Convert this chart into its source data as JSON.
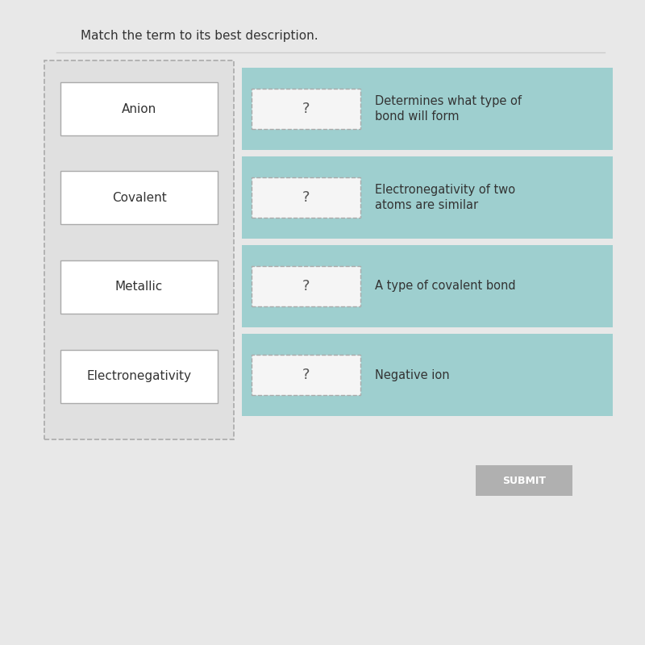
{
  "title": "Match the term to its best description.",
  "background_color": "#e8e8e8",
  "terms": [
    "Anion",
    "Covalent",
    "Metallic",
    "Electronegativity"
  ],
  "descriptions": [
    "Determines what type of\nbond will form",
    "Electronegativity of two\natoms are similar",
    "A type of covalent bond",
    "Negative ion"
  ],
  "term_box_color": "#ffffff",
  "term_box_edge_color": "#aaaaaa",
  "left_panel_dash_color": "#aaaaaa",
  "right_panel_color": "#9ecfcf",
  "question_box_color": "#f5f5f5",
  "question_box_edge_color": "#aaaaaa",
  "question_mark": "?",
  "submit_button_color": "#b0b0b0",
  "submit_text": "SUBMIT",
  "title_color": "#333333",
  "term_color": "#333333",
  "desc_color": "#333333",
  "title_fontsize": 11,
  "term_fontsize": 11,
  "desc_fontsize": 10.5,
  "submit_fontsize": 9
}
